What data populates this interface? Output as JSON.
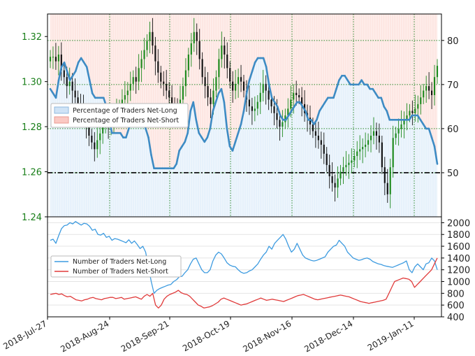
{
  "chart_data": [
    {
      "type": "candlestick",
      "panel": "top",
      "y_left": {
        "ylim": [
          1.24,
          1.33
        ],
        "tick_labels": [
          "1.24",
          "1.26",
          "1.28",
          "1.30",
          "1.32"
        ],
        "color": "#1a7f1a"
      },
      "y_right": {
        "ylim": [
          40,
          86
        ],
        "tick_labels": [
          "50",
          "60",
          "70",
          "80"
        ]
      },
      "x_tick_labels": [
        "2018-Jul-27",
        "2018-Aug-24",
        "2018-Sep-21",
        "2018-Oct-19",
        "2018-Nov-16",
        "2018-Dec-14",
        "2019-Jan-11"
      ],
      "legend": {
        "placement": "left",
        "entries": [
          "Percentage of Traders Net-Long",
          "Percentage of Traders Net-Short"
        ]
      },
      "reference_line": {
        "axis": "right",
        "value": 50,
        "style": "dash-dot"
      },
      "price_closes": [
        1.311,
        1.311,
        1.309,
        1.312,
        1.305,
        1.302,
        1.298,
        1.3,
        1.296,
        1.293,
        1.29,
        1.288,
        1.284,
        1.281,
        1.276,
        1.273,
        1.27,
        1.274,
        1.277,
        1.28,
        1.282,
        1.28,
        1.283,
        1.285,
        1.287,
        1.289,
        1.292,
        1.294,
        1.296,
        1.299,
        1.302,
        1.3,
        1.306,
        1.31,
        1.314,
        1.318,
        1.322,
        1.316,
        1.309,
        1.304,
        1.3,
        1.299,
        1.296,
        1.293,
        1.29,
        1.288,
        1.287,
        1.292,
        1.298,
        1.305,
        1.312,
        1.317,
        1.322,
        1.318,
        1.31,
        1.302,
        1.298,
        1.293,
        1.29,
        1.296,
        1.302,
        1.31,
        1.316,
        1.312,
        1.306,
        1.3,
        1.296,
        1.299,
        1.302,
        1.3,
        1.296,
        1.292,
        1.289,
        1.287,
        1.288,
        1.291,
        1.295,
        1.299,
        1.296,
        1.292,
        1.289,
        1.286,
        1.283,
        1.28,
        1.282,
        1.285,
        1.288,
        1.292,
        1.295,
        1.294,
        1.293,
        1.29,
        1.286,
        1.284,
        1.281,
        1.278,
        1.276,
        1.274,
        1.272,
        1.268,
        1.263,
        1.258,
        1.255,
        1.253,
        1.257,
        1.26,
        1.262,
        1.263,
        1.264,
        1.265,
        1.267,
        1.269,
        1.27,
        1.271,
        1.272,
        1.274,
        1.276,
        1.278,
        1.276,
        1.273,
        1.262,
        1.255,
        1.25,
        1.262,
        1.275,
        1.277,
        1.279,
        1.281,
        1.283,
        1.285,
        1.287,
        1.286,
        1.288,
        1.29,
        1.293,
        1.296,
        1.298,
        1.296,
        1.294,
        1.302,
        1.307
      ],
      "series": [
        {
          "name": "Percentage of Traders Net-Long",
          "color": "#3d8bc4",
          "values": [
            69,
            68,
            67,
            71,
            74,
            75,
            73,
            71,
            72,
            73,
            75,
            76,
            75,
            74,
            71,
            68,
            67,
            67,
            67,
            67,
            65,
            62,
            59,
            59,
            59,
            59,
            58,
            58,
            60,
            62,
            62,
            63,
            64,
            63,
            60,
            58,
            54,
            51,
            51,
            51,
            51,
            51,
            51,
            51,
            51,
            52,
            55,
            56,
            57,
            59,
            64,
            66,
            62,
            59,
            58,
            57,
            58,
            60,
            64,
            66,
            68,
            69,
            66,
            60,
            56,
            55,
            57,
            59,
            61,
            64,
            68,
            71,
            73,
            75,
            76,
            76,
            76,
            74,
            70,
            67,
            66,
            65,
            63,
            62,
            62,
            63,
            64,
            65,
            66,
            66,
            65,
            64,
            62,
            62,
            61,
            62,
            64,
            65,
            66,
            67,
            67,
            67,
            69,
            71,
            72,
            72,
            71,
            70,
            70,
            70,
            70,
            71,
            70,
            70,
            69,
            69,
            68,
            67,
            67,
            65,
            64,
            62,
            62,
            62,
            62,
            62,
            62,
            62,
            62,
            63,
            63,
            63,
            62,
            61,
            60,
            60,
            58,
            56,
            52
          ]
        }
      ]
    },
    {
      "type": "line",
      "panel": "bottom",
      "y_right": {
        "ylim": [
          400,
          2100
        ],
        "tick_labels": [
          "400",
          "600",
          "800",
          "1000",
          "1200",
          "1400",
          "1600",
          "1800",
          "2000"
        ]
      },
      "legend": {
        "placement": "left",
        "entries": [
          "Number of Traders Net-Long",
          "Number of Traders Net-Short"
        ]
      },
      "series": [
        {
          "name": "Number of Traders Net-Long",
          "color": "#3d9be0",
          "values": [
            1700,
            1720,
            1650,
            1780,
            1900,
            1950,
            1960,
            2000,
            1980,
            2020,
            1990,
            1960,
            1990,
            1980,
            1940,
            1870,
            1890,
            1800,
            1790,
            1820,
            1750,
            1770,
            1700,
            1730,
            1720,
            1700,
            1680,
            1660,
            1710,
            1650,
            1690,
            1630,
            1560,
            1600,
            1500,
            1250,
            1000,
            800,
            850,
            880,
            900,
            920,
            940,
            950,
            1000,
            1030,
            1080,
            1090,
            1150,
            1200,
            1300,
            1380,
            1400,
            1300,
            1200,
            1150,
            1150,
            1200,
            1350,
            1450,
            1500,
            1470,
            1400,
            1320,
            1280,
            1260,
            1250,
            1200,
            1160,
            1140,
            1150,
            1180,
            1200,
            1250,
            1300,
            1380,
            1450,
            1500,
            1600,
            1550,
            1650,
            1700,
            1750,
            1800,
            1720,
            1600,
            1500,
            1550,
            1650,
            1550,
            1450,
            1400,
            1380,
            1360,
            1350,
            1360,
            1380,
            1400,
            1420,
            1500,
            1550,
            1600,
            1620,
            1700,
            1650,
            1600,
            1500,
            1450,
            1400,
            1380,
            1360,
            1370,
            1390,
            1400,
            1380,
            1340,
            1320,
            1300,
            1290,
            1270,
            1260,
            1250,
            1240,
            1260,
            1280,
            1300,
            1320,
            1350,
            1200,
            1150,
            1250,
            1300,
            1250,
            1200,
            1300,
            1320,
            1400,
            1350,
            1200
          ]
        },
        {
          "name": "Number of Traders Net-Short",
          "color": "#e03a3a",
          "values": [
            780,
            790,
            800,
            780,
            790,
            760,
            740,
            750,
            720,
            690,
            680,
            670,
            690,
            700,
            720,
            730,
            710,
            700,
            690,
            710,
            720,
            730,
            730,
            710,
            720,
            730,
            700,
            710,
            720,
            730,
            740,
            720,
            700,
            750,
            780,
            750,
            800,
            600,
            550,
            600,
            700,
            750,
            780,
            800,
            820,
            850,
            810,
            790,
            780,
            750,
            700,
            650,
            600,
            580,
            550,
            560,
            570,
            590,
            620,
            650,
            700,
            720,
            700,
            680,
            660,
            640,
            620,
            600,
            610,
            620,
            640,
            660,
            680,
            700,
            720,
            700,
            680,
            690,
            700,
            690,
            680,
            670,
            660,
            680,
            700,
            720,
            740,
            760,
            770,
            780,
            760,
            740,
            720,
            700,
            690,
            700,
            710,
            720,
            730,
            740,
            750,
            760,
            770,
            760,
            750,
            740,
            720,
            700,
            680,
            660,
            650,
            640,
            630,
            640,
            650,
            660,
            670,
            680,
            700,
            800,
            900,
            1000,
            1020,
            1040,
            1060,
            1050,
            1040,
            1000,
            900,
            950,
            1000,
            1050,
            1100,
            1150,
            1200,
            1300,
            1400
          ]
        }
      ]
    }
  ]
}
